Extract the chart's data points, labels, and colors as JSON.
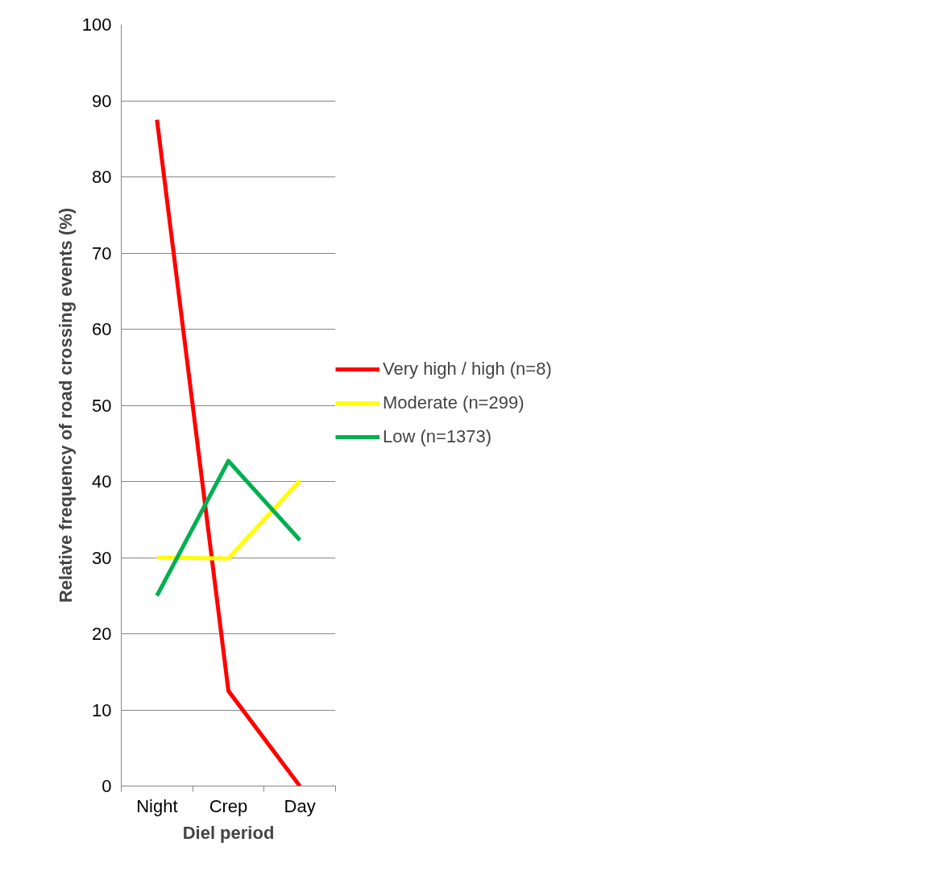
{
  "chart_data": {
    "type": "line",
    "xlabel": "Diel period",
    "ylabel": "Relative frequency of road crossing events (%)",
    "categories": [
      "Night",
      "Crep",
      "Day"
    ],
    "series": [
      {
        "name": "Very high / high (n=8)",
        "color": "#ff0000",
        "values": [
          87.5,
          12.5,
          0
        ]
      },
      {
        "name": "Moderate (n=299)",
        "color": "#ffff00",
        "values": [
          30,
          29.9,
          40.1
        ]
      },
      {
        "name": "Low (n=1373)",
        "color": "#00b050",
        "values": [
          25,
          42.7,
          32.3
        ]
      }
    ],
    "ylim": [
      0,
      100
    ],
    "yticks": [
      0,
      10,
      20,
      30,
      40,
      50,
      60,
      70,
      80,
      90,
      100
    ],
    "grid": "y",
    "legend": "right",
    "marker": "none",
    "line_style": "solid"
  }
}
